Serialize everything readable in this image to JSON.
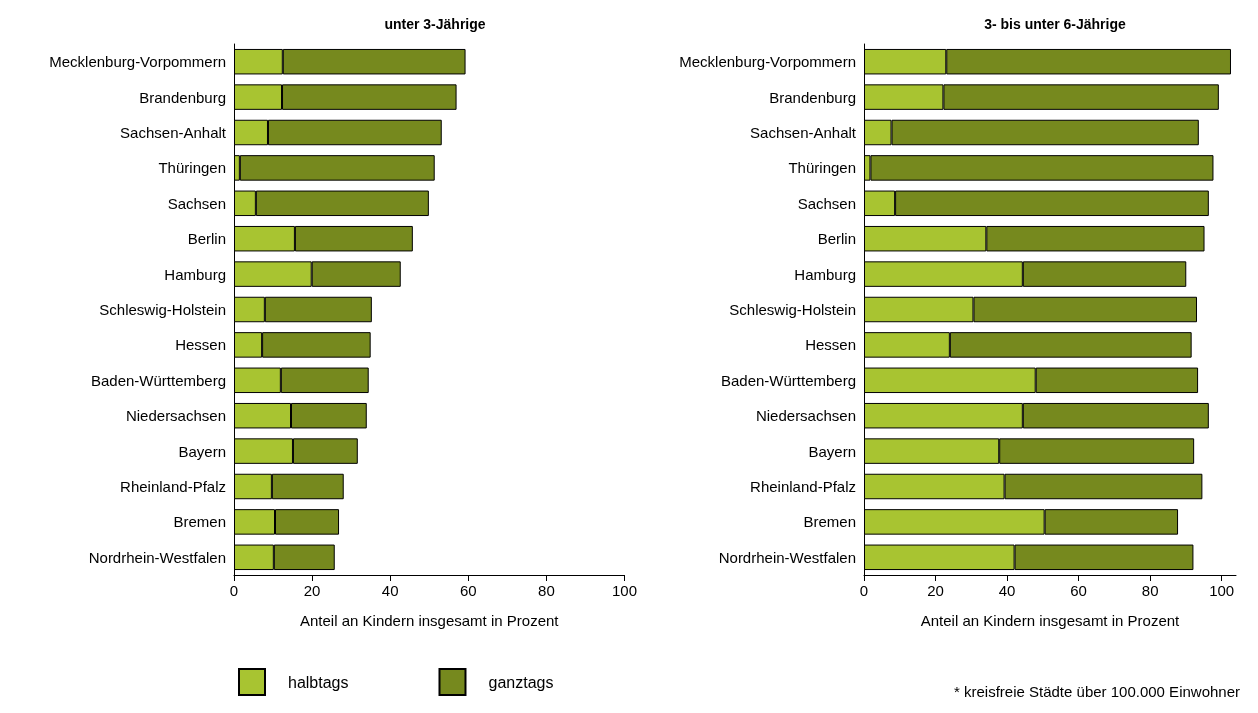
{
  "chart_data": [
    {
      "type": "bar",
      "orientation": "horizontal",
      "stacked": true,
      "title": "unter 3-Jährige",
      "xlabel": "Anteil an Kindern insgesamt in Prozent",
      "categories": [
        "Mecklenburg-Vorpommern",
        "Brandenburg",
        "Sachsen-Anhalt",
        "Thüringen",
        "Sachsen",
        "Berlin",
        "Hamburg",
        "Schleswig-Holstein",
        "Hessen",
        "Baden-Württemberg",
        "Niedersachsen",
        "Bayern",
        "Rheinland-Pfalz",
        "Bremen",
        "Nordrhein-Westfalen"
      ],
      "series": [
        {
          "name": "halbtags",
          "color": "#a8c431",
          "values": [
            12.5,
            12.3,
            8.7,
            1.5,
            5.6,
            15.6,
            19.9,
            7.9,
            7.2,
            12.0,
            14.6,
            15.1,
            9.7,
            10.5,
            10.2
          ]
        },
        {
          "name": "ganztags",
          "color": "#76891e",
          "values": [
            46.8,
            44.7,
            44.5,
            49.9,
            44.3,
            30.2,
            22.8,
            27.4,
            27.8,
            22.5,
            19.4,
            16.6,
            18.4,
            16.4,
            15.6
          ]
        }
      ],
      "xlim": [
        0,
        100
      ],
      "xticks": [
        0,
        20,
        40,
        60,
        80,
        100
      ],
      "grid": false,
      "legend": "bottom"
    },
    {
      "type": "bar",
      "orientation": "horizontal",
      "stacked": true,
      "title": "3- bis unter 6-Jährige",
      "xlabel": "Anteil an Kindern insgesamt in Prozent",
      "categories": [
        "Mecklenburg-Vorpommern",
        "Brandenburg",
        "Sachsen-Anhalt",
        "Thüringen",
        "Sachsen",
        "Berlin",
        "Hamburg",
        "Schleswig-Holstein",
        "Hessen",
        "Baden-Württemberg",
        "Niedersachsen",
        "Bayern",
        "Rheinland-Pfalz",
        "Bremen",
        "Nordrhein-Westfalen"
      ],
      "series": [
        {
          "color": "#a8c431",
          "values": [
            23.0,
            22.2,
            7.7,
            1.8,
            8.7,
            34.2,
            44.4,
            30.6,
            24.0,
            48.0,
            44.4,
            37.8,
            39.3,
            50.5,
            42.1
          ]
        },
        {
          "color": "#76891e",
          "values": [
            79.6,
            77.0,
            85.9,
            95.9,
            87.7,
            61.0,
            45.7,
            62.5,
            67.6,
            45.4,
            52.0,
            54.5,
            55.3,
            37.3,
            50.0
          ]
        }
      ],
      "xlim": [
        0,
        104
      ],
      "xticks": [
        0,
        20,
        40,
        60,
        80,
        100
      ],
      "grid": false,
      "legend": false,
      "annotations": [
        "* kreisfreie Städte über 100.000 Einwohner"
      ]
    }
  ]
}
